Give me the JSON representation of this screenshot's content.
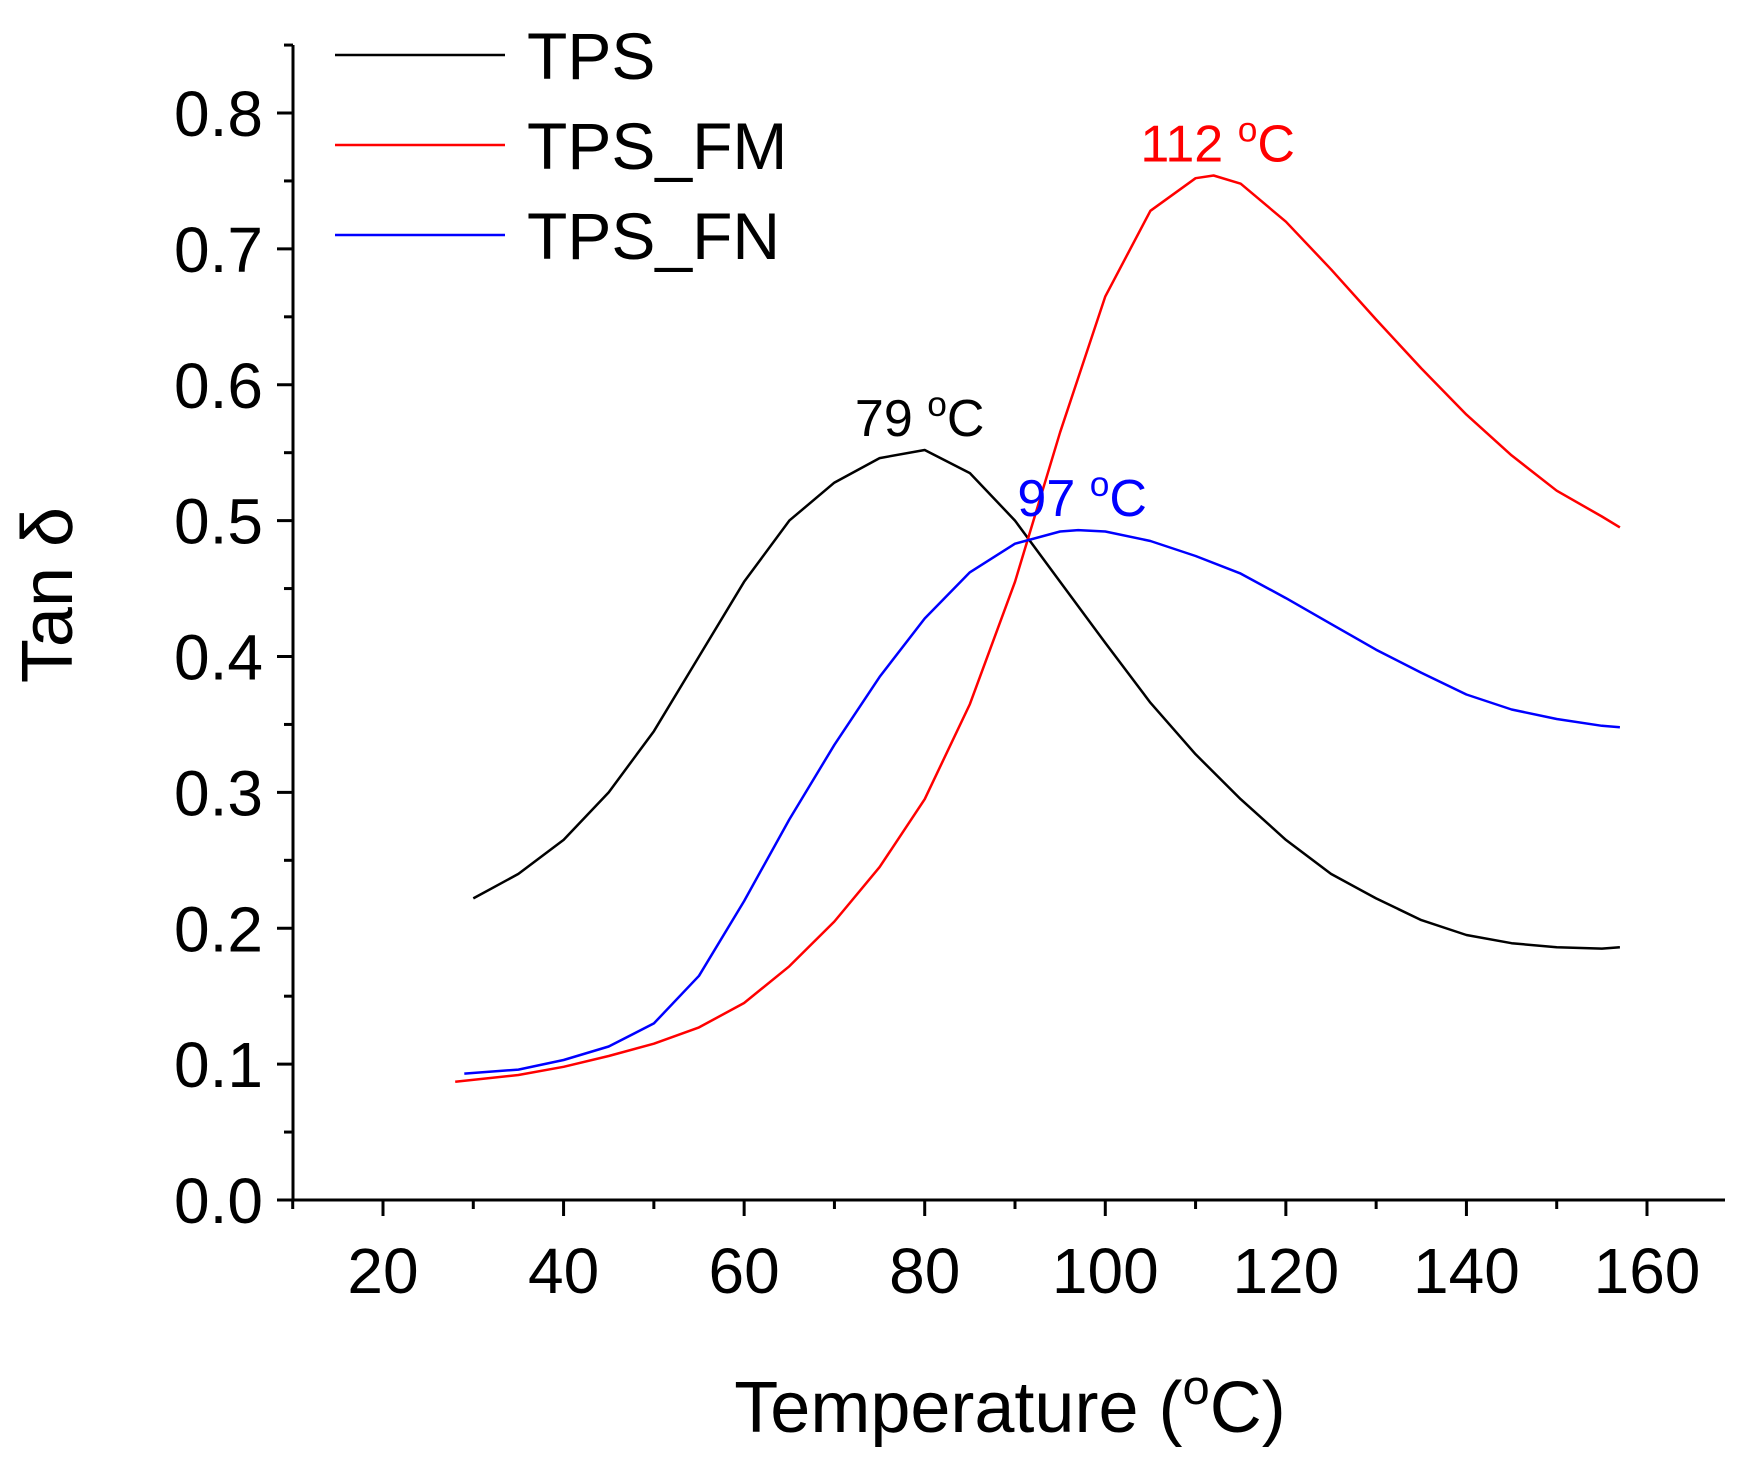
{
  "chart_data": {
    "type": "line",
    "title": "",
    "xlabel": "Temperature (",
    "xlabel_sup": "o",
    "xlabel_end": "C)",
    "ylabel": "Tan δ",
    "xlim": [
      10,
      170
    ],
    "ylim": [
      0,
      0.85
    ],
    "x_ticks": [
      20,
      40,
      60,
      80,
      100,
      120,
      140,
      160
    ],
    "y_ticks": [
      0.0,
      0.1,
      0.2,
      0.3,
      0.4,
      0.5,
      0.6,
      0.7,
      0.8
    ],
    "x_tick_labels": [
      "20",
      "40",
      "60",
      "80",
      "100",
      "120",
      "140",
      "160"
    ],
    "y_tick_labels": [
      "0.0",
      "0.1",
      "0.2",
      "0.3",
      "0.4",
      "0.5",
      "0.6",
      "0.7",
      "0.8"
    ],
    "grid": false,
    "legend_position": "top-left",
    "series": [
      {
        "name": "TPS",
        "color": "#000000",
        "x": [
          30,
          35,
          40,
          45,
          50,
          55,
          60,
          65,
          70,
          75,
          80,
          85,
          90,
          95,
          100,
          105,
          110,
          115,
          120,
          125,
          130,
          135,
          140,
          145,
          150,
          155,
          157
        ],
        "y": [
          0.222,
          0.24,
          0.265,
          0.3,
          0.345,
          0.4,
          0.455,
          0.5,
          0.528,
          0.546,
          0.552,
          0.535,
          0.5,
          0.455,
          0.41,
          0.366,
          0.328,
          0.295,
          0.265,
          0.24,
          0.222,
          0.206,
          0.195,
          0.189,
          0.186,
          0.185,
          0.186
        ]
      },
      {
        "name": "TPS_FM",
        "color": "#ff0000",
        "x": [
          28,
          35,
          40,
          45,
          50,
          55,
          60,
          65,
          70,
          75,
          80,
          85,
          90,
          95,
          100,
          105,
          110,
          112,
          115,
          120,
          125,
          130,
          135,
          140,
          145,
          150,
          155,
          157
        ],
        "y": [
          0.087,
          0.092,
          0.098,
          0.106,
          0.115,
          0.127,
          0.145,
          0.172,
          0.205,
          0.245,
          0.295,
          0.365,
          0.455,
          0.565,
          0.665,
          0.728,
          0.752,
          0.754,
          0.748,
          0.72,
          0.685,
          0.648,
          0.612,
          0.578,
          0.548,
          0.522,
          0.503,
          0.495
        ]
      },
      {
        "name": "TPS_FN",
        "color": "#0000ff",
        "x": [
          29,
          35,
          40,
          45,
          50,
          55,
          60,
          65,
          70,
          75,
          80,
          85,
          90,
          95,
          97,
          100,
          105,
          110,
          115,
          120,
          125,
          130,
          135,
          140,
          145,
          150,
          155,
          157
        ],
        "y": [
          0.093,
          0.096,
          0.103,
          0.113,
          0.13,
          0.165,
          0.22,
          0.28,
          0.335,
          0.385,
          0.428,
          0.462,
          0.483,
          0.492,
          0.493,
          0.492,
          0.485,
          0.474,
          0.461,
          0.443,
          0.424,
          0.405,
          0.388,
          0.372,
          0.361,
          0.354,
          0.349,
          0.348
        ]
      }
    ],
    "annotations": [
      {
        "text": "79 ",
        "sup": "o",
        "end": "C",
        "x": 79,
        "y": 0.552,
        "color": "#000000"
      },
      {
        "text": "112 ",
        "sup": "o",
        "end": "C",
        "x": 112,
        "y": 0.754,
        "color": "#ff0000"
      },
      {
        "text": "97 ",
        "sup": "o",
        "end": "C",
        "x": 97,
        "y": 0.493,
        "color": "#0000ff"
      }
    ]
  }
}
